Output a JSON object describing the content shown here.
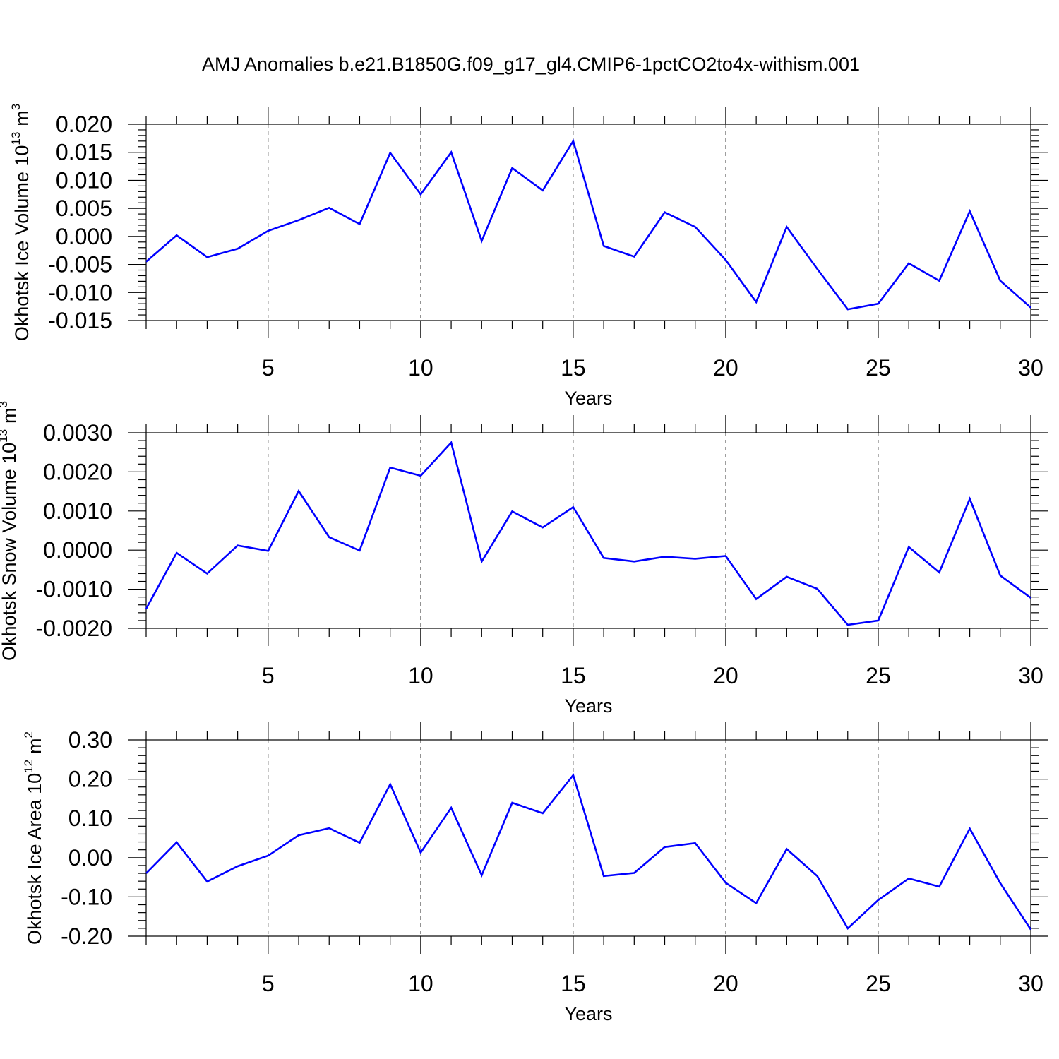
{
  "title": "AMJ Anomalies b.e21.B1850G.f09_g17_gl4.CMIP6-1pctCO2to4x-withism.001",
  "line_color": "#0000ff",
  "chart_data": [
    {
      "type": "line",
      "xlabel": "Years",
      "ylabel_text": "Okhotsk Ice Volume 10",
      "ylabel_exp": "13",
      "ylabel_unit": "m",
      "ylabel_unit_exp": "3",
      "xlim": [
        1,
        30
      ],
      "ylim": [
        -0.015,
        0.02
      ],
      "x_ticks": [
        5,
        10,
        15,
        20,
        25,
        30
      ],
      "y_ticks": [
        -0.015,
        -0.01,
        -0.005,
        0.0,
        0.005,
        0.01,
        0.015,
        0.02
      ],
      "y_tick_labels": [
        "-0.015",
        "-0.010",
        "-0.005",
        "0.000",
        "0.005",
        "0.010",
        "0.015",
        "0.020"
      ],
      "y_minor_step": 0.001,
      "grid_x": [
        5,
        10,
        15,
        20,
        25
      ],
      "x": [
        1,
        2,
        3,
        4,
        5,
        6,
        7,
        8,
        9,
        10,
        11,
        12,
        13,
        14,
        15,
        16,
        17,
        18,
        19,
        20,
        21,
        22,
        23,
        24,
        25,
        26,
        27,
        28,
        29,
        30
      ],
      "values": [
        -0.0045,
        0.0002,
        -0.0037,
        -0.0022,
        0.001,
        0.0029,
        0.0051,
        0.0022,
        0.0149,
        0.0075,
        0.015,
        -0.0008,
        0.0122,
        0.0082,
        0.017,
        -0.0017,
        -0.0036,
        0.0043,
        0.0017,
        -0.0042,
        -0.0117,
        0.0017,
        -0.0058,
        -0.013,
        -0.012,
        -0.0048,
        -0.0079,
        0.0045,
        -0.0079,
        -0.0127
      ]
    },
    {
      "type": "line",
      "xlabel": "Years",
      "ylabel_text": "Okhotsk Snow Volume 10",
      "ylabel_exp": "13",
      "ylabel_unit": "m",
      "ylabel_unit_exp": "3",
      "xlim": [
        1,
        30
      ],
      "ylim": [
        -0.002,
        0.003
      ],
      "x_ticks": [
        5,
        10,
        15,
        20,
        25,
        30
      ],
      "y_ticks": [
        -0.002,
        -0.001,
        0.0,
        0.001,
        0.002,
        0.003
      ],
      "y_tick_labels": [
        "-0.0020",
        "-0.0010",
        "0.0000",
        "0.0010",
        "0.0020",
        "0.0030"
      ],
      "y_minor_step": 0.0002,
      "grid_x": [
        5,
        10,
        15,
        20,
        25
      ],
      "x": [
        1,
        2,
        3,
        4,
        5,
        6,
        7,
        8,
        9,
        10,
        11,
        12,
        13,
        14,
        15,
        16,
        17,
        18,
        19,
        20,
        21,
        22,
        23,
        24,
        25,
        26,
        27,
        28,
        29,
        30
      ],
      "values": [
        -0.0015,
        -7e-05,
        -0.0006,
        0.00012,
        -2e-05,
        0.00151,
        0.00033,
        -1e-05,
        0.00211,
        0.0019,
        0.00275,
        -0.00029,
        0.00099,
        0.00058,
        0.0011,
        -0.0002,
        -0.00029,
        -0.00017,
        -0.00022,
        -0.00015,
        -0.00125,
        -0.00068,
        -0.00099,
        -0.00191,
        -0.0018,
        8e-05,
        -0.00057,
        0.00131,
        -0.00065,
        -0.00122
      ]
    },
    {
      "type": "line",
      "xlabel": "Years",
      "ylabel_text": "Okhotsk Ice Area 10",
      "ylabel_exp": "12",
      "ylabel_unit": "m",
      "ylabel_unit_exp": "2",
      "xlim": [
        1,
        30
      ],
      "ylim": [
        -0.2,
        0.3
      ],
      "x_ticks": [
        5,
        10,
        15,
        20,
        25,
        30
      ],
      "y_ticks": [
        -0.2,
        -0.1,
        0.0,
        0.1,
        0.2,
        0.3
      ],
      "y_tick_labels": [
        "-0.20",
        "-0.10",
        "0.00",
        "0.10",
        "0.20",
        "0.30"
      ],
      "y_minor_step": 0.02,
      "grid_x": [
        5,
        10,
        15,
        20,
        25
      ],
      "x": [
        1,
        2,
        3,
        4,
        5,
        6,
        7,
        8,
        9,
        10,
        11,
        12,
        13,
        14,
        15,
        16,
        17,
        18,
        19,
        20,
        21,
        22,
        23,
        24,
        25,
        26,
        27,
        28,
        29,
        30
      ],
      "values": [
        -0.04,
        0.039,
        -0.061,
        -0.022,
        0.005,
        0.057,
        0.075,
        0.038,
        0.187,
        0.013,
        0.127,
        -0.045,
        0.14,
        0.113,
        0.21,
        -0.047,
        -0.039,
        0.027,
        0.037,
        -0.064,
        -0.116,
        0.022,
        -0.047,
        -0.18,
        -0.108,
        -0.053,
        -0.074,
        0.074,
        -0.065,
        -0.183
      ]
    }
  ]
}
